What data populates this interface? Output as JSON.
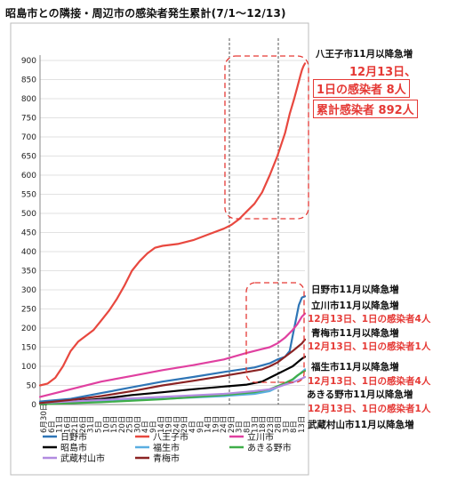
{
  "title": "昭島市との隣接・周辺市の感染者発生累計(7/1〜12/13)",
  "chart_data": {
    "type": "line",
    "title": "昭島市との隣接・周辺市の感染者発生累計(7/1〜12/13)",
    "ylim": [
      0,
      900
    ],
    "yticks": [
      0,
      50,
      100,
      150,
      200,
      250,
      300,
      350,
      400,
      450,
      500,
      550,
      600,
      650,
      700,
      750,
      800,
      850,
      900
    ],
    "x_labels": [
      "6月30日",
      "6日",
      "11日",
      "16日",
      "21日",
      "26日",
      "31日",
      "5日",
      "10日",
      "15日",
      "20日",
      "25日",
      "30日",
      "4日",
      "9日",
      "14日",
      "19日",
      "24日",
      "29日",
      "4日",
      "9日",
      "14日",
      "19日",
      "24日",
      "29日",
      "3日",
      "8日",
      "13日",
      "18日",
      "23日",
      "28日",
      "3日",
      "8日",
      "13日"
    ],
    "annotations": {
      "hachioji": [
        "八王子市11月以降急増",
        "12月13日、",
        "1日の感染者 8人",
        "累計感染者 892人"
      ],
      "hino": "日野市11月以降急増",
      "tachikawa": "立川市11月以降急増",
      "tachikawa_red": "12月13日、1日の感染者4人",
      "ome": "青梅市11月以降急増",
      "ome_red": "12月13日、1日の感染者1人",
      "fussa": "福生市11月以降急増",
      "fussa_red": "12月13日、1日の感染者4人",
      "akiruno": "あきる野市11月以降急増",
      "akiruno_red": "12月13日、1日の感染者1人",
      "musashimurayama": "武蔵村山市11月以降急増"
    },
    "series": [
      {
        "name": "日野市",
        "color": "#2e75b6",
        "values": [
          [
            0,
            8
          ],
          [
            20,
            15
          ],
          [
            40,
            30
          ],
          [
            60,
            45
          ],
          [
            80,
            60
          ],
          [
            100,
            72
          ],
          [
            120,
            85
          ],
          [
            140,
            97
          ],
          [
            150,
            108
          ],
          [
            155,
            118
          ],
          [
            160,
            125
          ],
          [
            163,
            140
          ],
          [
            165,
            180
          ],
          [
            167,
            220
          ],
          [
            169,
            260
          ],
          [
            171,
            280
          ],
          [
            173,
            283
          ]
        ]
      },
      {
        "name": "八王子市",
        "color": "#e8483f",
        "values": [
          [
            0,
            50
          ],
          [
            5,
            55
          ],
          [
            10,
            70
          ],
          [
            15,
            100
          ],
          [
            20,
            140
          ],
          [
            25,
            165
          ],
          [
            30,
            180
          ],
          [
            35,
            195
          ],
          [
            40,
            220
          ],
          [
            45,
            245
          ],
          [
            50,
            275
          ],
          [
            55,
            310
          ],
          [
            60,
            350
          ],
          [
            65,
            375
          ],
          [
            70,
            395
          ],
          [
            75,
            410
          ],
          [
            80,
            415
          ],
          [
            90,
            420
          ],
          [
            100,
            430
          ],
          [
            110,
            445
          ],
          [
            120,
            460
          ],
          [
            125,
            470
          ],
          [
            130,
            485
          ],
          [
            135,
            505
          ],
          [
            140,
            525
          ],
          [
            145,
            555
          ],
          [
            150,
            600
          ],
          [
            155,
            650
          ],
          [
            160,
            710
          ],
          [
            163,
            760
          ],
          [
            166,
            800
          ],
          [
            168,
            830
          ],
          [
            170,
            860
          ],
          [
            171,
            875
          ],
          [
            172,
            885
          ],
          [
            173,
            892
          ]
        ]
      },
      {
        "name": "立川市",
        "color": "#e040a0",
        "values": [
          [
            0,
            20
          ],
          [
            20,
            40
          ],
          [
            40,
            60
          ],
          [
            60,
            75
          ],
          [
            80,
            90
          ],
          [
            100,
            103
          ],
          [
            120,
            118
          ],
          [
            135,
            135
          ],
          [
            145,
            145
          ],
          [
            150,
            150
          ],
          [
            155,
            160
          ],
          [
            160,
            175
          ],
          [
            165,
            195
          ],
          [
            168,
            210
          ],
          [
            171,
            230
          ],
          [
            173,
            238
          ]
        ]
      },
      {
        "name": "昭島市",
        "color": "#000000",
        "values": [
          [
            0,
            3
          ],
          [
            20,
            8
          ],
          [
            40,
            15
          ],
          [
            60,
            25
          ],
          [
            80,
            32
          ],
          [
            100,
            40
          ],
          [
            120,
            47
          ],
          [
            135,
            52
          ],
          [
            145,
            60
          ],
          [
            150,
            70
          ],
          [
            155,
            80
          ],
          [
            160,
            90
          ],
          [
            165,
            100
          ],
          [
            168,
            110
          ],
          [
            171,
            120
          ],
          [
            173,
            125
          ]
        ]
      },
      {
        "name": "福生市",
        "color": "#5aaee0",
        "values": [
          [
            0,
            2
          ],
          [
            40,
            8
          ],
          [
            80,
            15
          ],
          [
            120,
            22
          ],
          [
            140,
            28
          ],
          [
            150,
            35
          ],
          [
            155,
            45
          ],
          [
            160,
            55
          ],
          [
            165,
            65
          ],
          [
            168,
            75
          ],
          [
            171,
            85
          ],
          [
            173,
            92
          ]
        ]
      },
      {
        "name": "あきる野市",
        "color": "#3fae49",
        "values": [
          [
            0,
            1
          ],
          [
            40,
            6
          ],
          [
            80,
            14
          ],
          [
            120,
            25
          ],
          [
            140,
            32
          ],
          [
            150,
            40
          ],
          [
            155,
            48
          ],
          [
            160,
            56
          ],
          [
            165,
            66
          ],
          [
            168,
            76
          ],
          [
            171,
            84
          ],
          [
            173,
            88
          ]
        ]
      },
      {
        "name": "武蔵村山市",
        "color": "#b28be0",
        "values": [
          [
            0,
            4
          ],
          [
            40,
            12
          ],
          [
            80,
            20
          ],
          [
            120,
            28
          ],
          [
            140,
            35
          ],
          [
            150,
            40
          ],
          [
            155,
            45
          ],
          [
            160,
            52
          ],
          [
            165,
            58
          ],
          [
            168,
            63
          ],
          [
            171,
            68
          ],
          [
            173,
            72
          ]
        ]
      },
      {
        "name": "青梅市",
        "color": "#8b2323",
        "values": [
          [
            0,
            4
          ],
          [
            20,
            12
          ],
          [
            40,
            22
          ],
          [
            60,
            35
          ],
          [
            80,
            50
          ],
          [
            100,
            62
          ],
          [
            120,
            75
          ],
          [
            135,
            85
          ],
          [
            145,
            92
          ],
          [
            150,
            100
          ],
          [
            155,
            110
          ],
          [
            160,
            125
          ],
          [
            165,
            140
          ],
          [
            168,
            150
          ],
          [
            171,
            160
          ],
          [
            173,
            170
          ]
        ]
      }
    ],
    "legend": [
      "日野市",
      "八王子市",
      "立川市",
      "昭島市",
      "福生市",
      "あきる野市",
      "武蔵村山市",
      "青梅市"
    ],
    "legend_placement": "bottom"
  }
}
